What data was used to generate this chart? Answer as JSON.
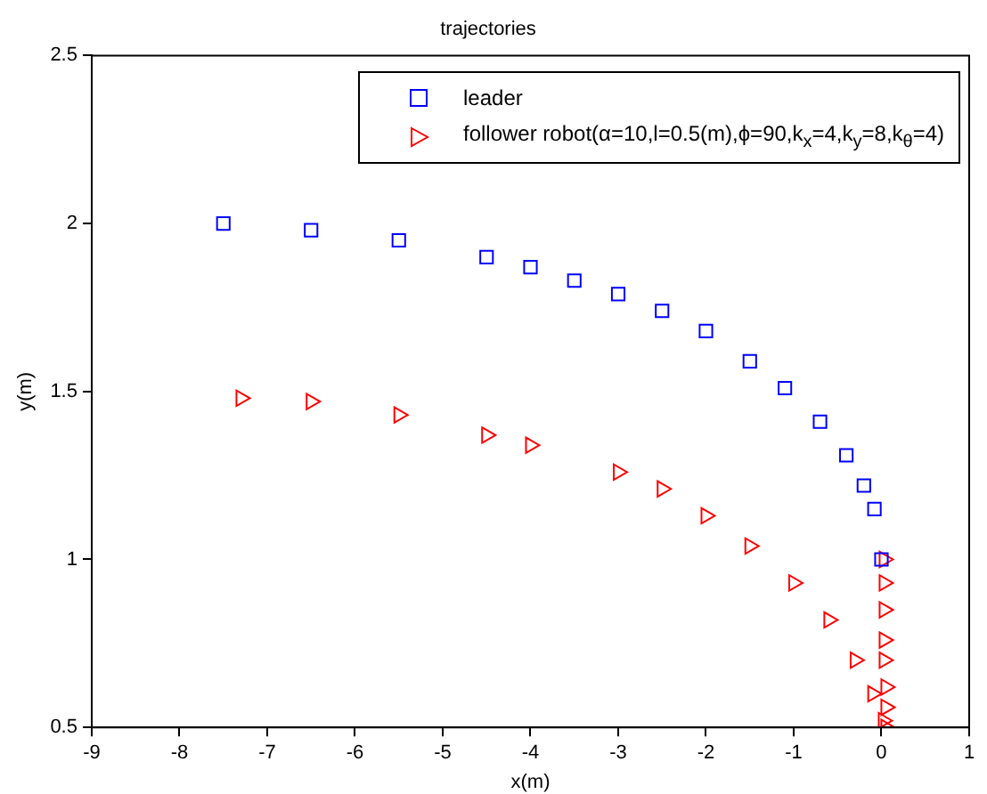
{
  "chart_data": {
    "type": "scatter",
    "title": "trajectories",
    "xlabel": "x(m)",
    "ylabel": "y(m)",
    "xlim": [
      -9,
      1
    ],
    "xticks": [
      -9,
      -8,
      -7,
      -6,
      -5,
      -4,
      -3,
      -2,
      -1,
      0,
      1
    ],
    "ylim": [
      0.5,
      2.5
    ],
    "yticks": [
      0.5,
      1,
      1.5,
      2,
      2.5
    ],
    "grid": false,
    "legend": "top right",
    "series": [
      {
        "name": "leader",
        "color": "#0000ff",
        "marker": "square",
        "x": [
          -7.5,
          -6.5,
          -5.5,
          -4.5,
          -4,
          -3.5,
          -3,
          -2.5,
          -2,
          -1.5,
          -1.1,
          -0.7,
          -0.4,
          -0.2,
          -0.08,
          0
        ],
        "values": [
          2.0,
          1.98,
          1.95,
          1.9,
          1.87,
          1.83,
          1.79,
          1.74,
          1.68,
          1.59,
          1.51,
          1.41,
          1.31,
          1.22,
          1.15,
          1.0
        ]
      },
      {
        "name": "follower robot(α=10,l=0.5(m),ϕ=90,k$_{x}$=4,k$_{y}$=8,k$_{θ}$=4)",
        "color": "#ff0000",
        "marker": "triangle",
        "x": [
          -7.3,
          -6.5,
          -5.5,
          -4.5,
          -4,
          -3,
          -2.5,
          -2,
          -1.5,
          -1,
          -0.6,
          -0.3,
          -0.1,
          0.02,
          0.03,
          0.03,
          0.03,
          0.03,
          0.03,
          0.05,
          0.05,
          0.05
        ],
        "values": [
          1.48,
          1.47,
          1.43,
          1.37,
          1.34,
          1.26,
          1.21,
          1.13,
          1.04,
          0.93,
          0.82,
          0.7,
          0.6,
          0.52,
          1.0,
          0.93,
          0.85,
          0.76,
          0.7,
          0.62,
          0.56,
          0.5
        ]
      }
    ]
  }
}
